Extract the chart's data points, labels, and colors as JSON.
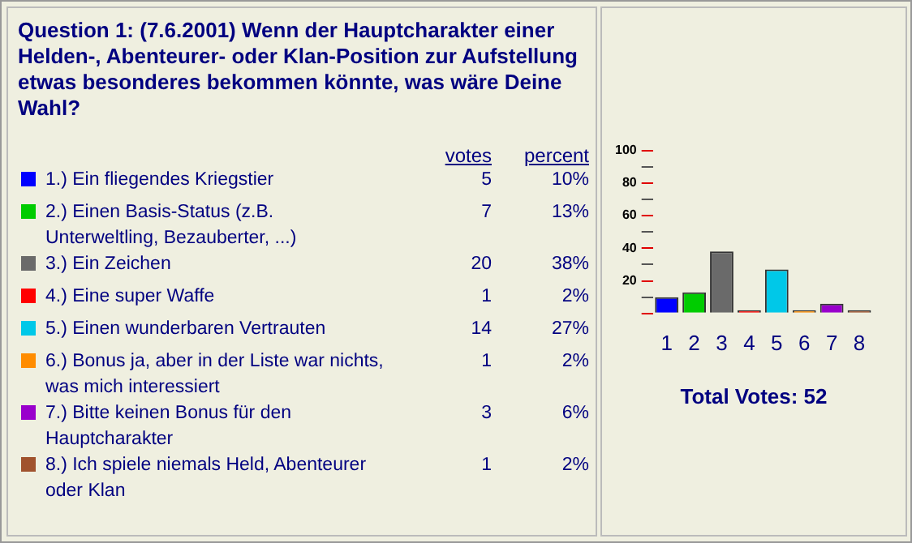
{
  "chart_data": [
    {
      "type": "other",
      "title": "Question 1:  (7.6.2001) Wenn der Hauptcharakter einer Helden-, Abenteurer- oder Klan-Position zur Aufstellung etwas besonderes bekommen könnte, was wäre Deine Wahl?",
      "categories": [
        "1.) Ein fliegendes Kriegstier",
        "2.) Einen Basis-Status (z.B. Unterweltling, Bezauberter, ...)",
        "3.) Ein Zeichen",
        "4.) Eine super Waffe",
        "5.) Einen wunderbaren Vertrauten",
        "6.) Bonus ja, aber in der Liste war nichts, was mich interessiert",
        "7.) Bitte keinen Bonus für den Hauptcharakter",
        "8.) Ich spiele niemals Held, Abenteurer oder Klan"
      ],
      "colors": [
        "#0000ff",
        "#00cc00",
        "#6a6a6a",
        "#ff0000",
        "#00c8e8",
        "#ff8c00",
        "#9900cc",
        "#a0522d"
      ],
      "series": [
        {
          "name": "votes",
          "values": [
            5,
            7,
            20,
            1,
            14,
            1,
            3,
            1
          ]
        },
        {
          "name": "percent",
          "values": [
            10,
            13,
            38,
            2,
            27,
            2,
            6,
            2
          ],
          "value_labels": [
            "10%",
            "13%",
            "38%",
            "2%",
            "27%",
            "2%",
            "6%",
            "2%"
          ]
        }
      ],
      "data_labels": true
    },
    {
      "type": "bar",
      "categories": [
        "1",
        "2",
        "3",
        "4",
        "5",
        "6",
        "7",
        "8"
      ],
      "values": [
        10,
        13,
        38,
        2,
        27,
        2,
        6,
        2
      ],
      "colors": [
        "#0000ff",
        "#00cc00",
        "#6a6a6a",
        "#ff0000",
        "#00c8e8",
        "#ff8c00",
        "#9900cc",
        "#a0522d"
      ],
      "ylim": [
        0,
        100
      ],
      "yticks": [
        {
          "value": 0,
          "label": null
        },
        {
          "value": 10,
          "label": null
        },
        20,
        {
          "value": 30,
          "label": null
        },
        40,
        {
          "value": 50,
          "label": null
        },
        60,
        {
          "value": 70,
          "label": null
        },
        80,
        {
          "value": 90,
          "label": null
        },
        100
      ],
      "grid": false,
      "annotations": [
        "Total Votes:  52"
      ]
    }
  ]
}
